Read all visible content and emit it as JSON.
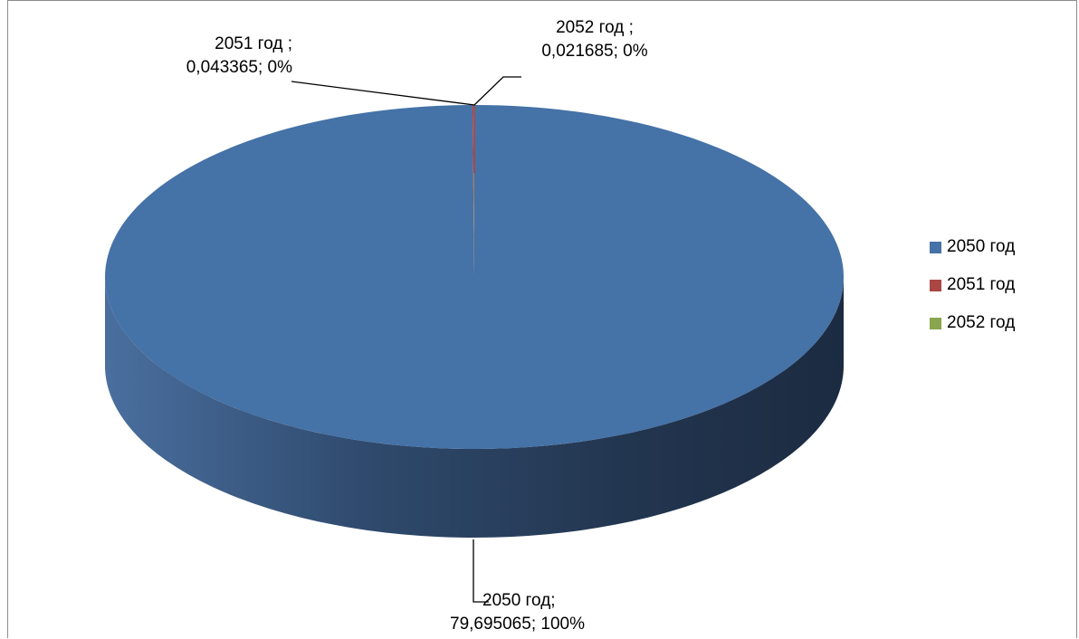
{
  "chart_data": {
    "type": "pie",
    "style": "3d",
    "categories": [
      "2050 год",
      "2051 год",
      "2052 год"
    ],
    "values": [
      79.695065,
      0.043365,
      0.021685
    ],
    "percent_labels": [
      "100%",
      "0%",
      "0%"
    ],
    "colors": [
      "#4572a7",
      "#aa4643",
      "#89a54e"
    ],
    "legend_position": "right",
    "data_labels": [
      {
        "line1": "2050 год;",
        "line2": "79,695065; 100%"
      },
      {
        "line1": "2051 год ;",
        "line2": "0,043365; 0%"
      },
      {
        "line1": "2052 год ;",
        "line2": "0,021685; 0%"
      }
    ]
  }
}
